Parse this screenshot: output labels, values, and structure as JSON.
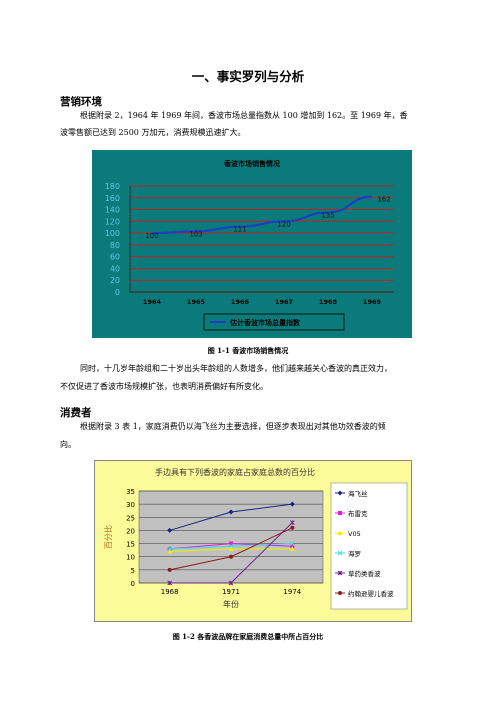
{
  "doc": {
    "title": "一、事实罗列与分析",
    "section1": {
      "heading": "营销环境",
      "para_line1": "根据附录 2，1964 年 1969 年间，香波市场总量指数从 100 增加到 162。至 1969 年，香",
      "para_line2": "波零售额已达到 2500 万加元，消费规模迅速扩大。"
    },
    "figure1": {
      "caption": "图 1-1    香波市场销售情况"
    },
    "section1_after": {
      "para_line1": "同时，十几岁年龄组和二十岁出头年龄组的人数增多，他们越来越关心香波的真正效力，",
      "para_line2": "不仅促进了香波市场规模扩张，也表明消费偏好有所变化。"
    },
    "section2": {
      "heading": "消费者",
      "para_line1": "根据附录 3 表 1，家庭消费仍以海飞丝为主要选择，但逐步表现出对其他功效香波的倾",
      "para_line2": "向。"
    },
    "figure2": {
      "caption": "图 1-2    各香波品牌在家庭消费总量中所占百分比"
    }
  },
  "chart_data": [
    {
      "type": "line",
      "title": "香波市场销售情况",
      "categories": [
        "1964",
        "1965",
        "1966",
        "1967",
        "1968",
        "1969"
      ],
      "series": [
        {
          "name": "估计香波市场总量指数",
          "values": [
            100,
            103,
            111,
            120,
            135,
            162
          ],
          "color": "#1a3cc8"
        }
      ],
      "ylim": [
        0,
        180
      ],
      "yticks": [
        "0",
        "20",
        "40",
        "60",
        "80",
        "100",
        "120",
        "140",
        "160",
        "180"
      ],
      "grid": true,
      "legend": "bottom",
      "background": "#0b7a7a",
      "gridcolor": "#c02020"
    },
    {
      "type": "line",
      "title": "手边具有下列香波的家庭占家庭总数的百分比",
      "xlabel": "年份",
      "ylabel": "百分比",
      "categories": [
        "1968",
        "1971",
        "1974"
      ],
      "ylim": [
        0,
        35
      ],
      "yticks": [
        "0",
        "5",
        "10",
        "15",
        "20",
        "25",
        "30",
        "35"
      ],
      "series": [
        {
          "name": "海飞丝",
          "values": [
            20,
            27,
            30
          ],
          "color": "#1a237e"
        },
        {
          "name": "布雷克",
          "values": [
            13,
            15,
            14
          ],
          "color": "#e020e0"
        },
        {
          "name": "V05",
          "values": [
            12,
            13,
            13
          ],
          "color": "#f0f000"
        },
        {
          "name": "海罗",
          "values": [
            13,
            14,
            15
          ],
          "color": "#40e0e0"
        },
        {
          "name": "草药类香波",
          "values": [
            0,
            0,
            23
          ],
          "color": "#702090"
        },
        {
          "name": "约翰逊婴儿香波",
          "values": [
            5,
            10,
            21
          ],
          "color": "#8b1a1a"
        }
      ],
      "grid": true,
      "legend": "right",
      "background": "#fbfb9a",
      "plot_background": "#c0c0c0"
    }
  ]
}
